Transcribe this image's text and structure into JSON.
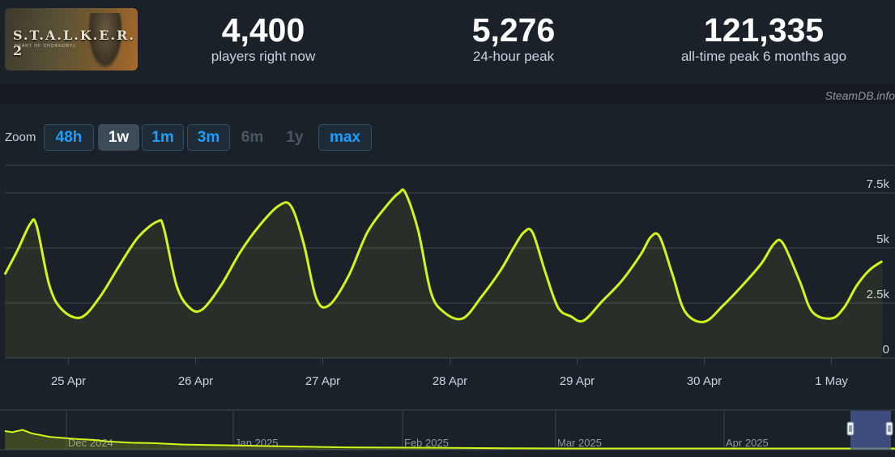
{
  "header": {
    "logo": {
      "text": "S.T.A.L.K.E.R. 2",
      "subtext": "HEART OF CHORNOBYL"
    },
    "stats": [
      {
        "value": "4,400",
        "label": "players right now"
      },
      {
        "value": "5,276",
        "label": "24-hour peak"
      },
      {
        "value": "121,335",
        "label": "all-time peak 6 months ago"
      }
    ]
  },
  "credit": "SteamDB.info",
  "zoom": {
    "label": "Zoom",
    "options": [
      {
        "label": "48h",
        "state": "enabled"
      },
      {
        "label": "1w",
        "state": "active"
      },
      {
        "label": "1m",
        "state": "enabled"
      },
      {
        "label": "3m",
        "state": "enabled"
      },
      {
        "label": "6m",
        "state": "disabled"
      },
      {
        "label": "1y",
        "state": "disabled"
      },
      {
        "label": "max",
        "state": "enabled"
      }
    ]
  },
  "colors": {
    "line": "#d4f51b",
    "grid": "#3a4654",
    "background": "#1b2129",
    "navigator_fill": "#4a5a9a"
  },
  "chart_data": [
    {
      "type": "line",
      "title": "",
      "xlabel": "",
      "ylabel": "",
      "ylim": [
        0,
        8750
      ],
      "yticks": [
        0,
        2500,
        5000,
        7500
      ],
      "ytick_labels": [
        "0",
        "2.5k",
        "5k",
        "7.5k"
      ],
      "xticks": [
        {
          "x": 0.5,
          "label": "25 Apr"
        },
        {
          "x": 1.5,
          "label": "26 Apr"
        },
        {
          "x": 2.5,
          "label": "27 Apr"
        },
        {
          "x": 3.5,
          "label": "28 Apr"
        },
        {
          "x": 4.5,
          "label": "29 Apr"
        },
        {
          "x": 5.5,
          "label": "30 Apr"
        },
        {
          "x": 6.5,
          "label": "1 May"
        }
      ],
      "grid": true,
      "legend": "none",
      "series": [
        {
          "values": [
            [
              0.0,
              3800
            ],
            [
              0.1,
              4900
            ],
            [
              0.2,
              6100
            ],
            [
              0.25,
              6000
            ],
            [
              0.35,
              3300
            ],
            [
              0.45,
              2200
            ],
            [
              0.6,
              1850
            ],
            [
              0.75,
              2800
            ],
            [
              0.9,
              4200
            ],
            [
              1.05,
              5500
            ],
            [
              1.2,
              6200
            ],
            [
              1.25,
              5900
            ],
            [
              1.35,
              3300
            ],
            [
              1.45,
              2300
            ],
            [
              1.55,
              2200
            ],
            [
              1.7,
              3300
            ],
            [
              1.85,
              4800
            ],
            [
              2.0,
              6000
            ],
            [
              2.15,
              6900
            ],
            [
              2.25,
              6900
            ],
            [
              2.35,
              5200
            ],
            [
              2.45,
              2700
            ],
            [
              2.55,
              2400
            ],
            [
              2.7,
              3700
            ],
            [
              2.85,
              5700
            ],
            [
              3.0,
              6900
            ],
            [
              3.1,
              7500
            ],
            [
              3.15,
              7500
            ],
            [
              3.25,
              5800
            ],
            [
              3.35,
              3000
            ],
            [
              3.45,
              2100
            ],
            [
              3.6,
              1800
            ],
            [
              3.75,
              2800
            ],
            [
              3.9,
              4000
            ],
            [
              4.0,
              5000
            ],
            [
              4.08,
              5700
            ],
            [
              4.15,
              5700
            ],
            [
              4.25,
              3900
            ],
            [
              4.35,
              2300
            ],
            [
              4.45,
              1900
            ],
            [
              4.55,
              1700
            ],
            [
              4.7,
              2600
            ],
            [
              4.85,
              3500
            ],
            [
              5.0,
              4700
            ],
            [
              5.08,
              5500
            ],
            [
              5.15,
              5500
            ],
            [
              5.25,
              3800
            ],
            [
              5.35,
              2100
            ],
            [
              5.5,
              1650
            ],
            [
              5.65,
              2400
            ],
            [
              5.8,
              3300
            ],
            [
              5.95,
              4300
            ],
            [
              6.05,
              5200
            ],
            [
              6.12,
              5200
            ],
            [
              6.25,
              3500
            ],
            [
              6.35,
              2100
            ],
            [
              6.5,
              1800
            ],
            [
              6.6,
              2300
            ],
            [
              6.7,
              3300
            ],
            [
              6.8,
              4000
            ],
            [
              6.9,
              4400
            ]
          ]
        }
      ]
    },
    {
      "type": "area",
      "title": "",
      "xticks": [
        {
          "x": 1,
          "label": "Dec 2024"
        },
        {
          "x": 2,
          "label": "Jan 2025"
        },
        {
          "x": 3,
          "label": "Feb 2025"
        },
        {
          "x": 4,
          "label": "Mar 2025"
        },
        {
          "x": 5,
          "label": "Apr 2025"
        }
      ],
      "ylim": [
        0,
        1
      ],
      "selected_range": [
        5.75,
        6.0
      ],
      "series": [
        {
          "values": [
            [
              0.0,
              0.8
            ],
            [
              0.05,
              0.75
            ],
            [
              0.12,
              0.85
            ],
            [
              0.18,
              0.7
            ],
            [
              0.3,
              0.55
            ],
            [
              0.4,
              0.5
            ],
            [
              0.5,
              0.45
            ],
            [
              0.6,
              0.42
            ],
            [
              0.7,
              0.35
            ],
            [
              0.85,
              0.3
            ],
            [
              1.0,
              0.28
            ],
            [
              1.2,
              0.22
            ],
            [
              1.4,
              0.2
            ],
            [
              1.6,
              0.18
            ],
            [
              1.8,
              0.15
            ],
            [
              2.0,
              0.13
            ],
            [
              2.3,
              0.1
            ],
            [
              2.6,
              0.09
            ],
            [
              3.0,
              0.08
            ],
            [
              3.4,
              0.06
            ],
            [
              3.8,
              0.05
            ],
            [
              4.2,
              0.05
            ],
            [
              4.6,
              0.05
            ],
            [
              5.0,
              0.05
            ],
            [
              5.4,
              0.05
            ],
            [
              5.75,
              0.05
            ],
            [
              6.0,
              0.05
            ]
          ]
        }
      ]
    }
  ]
}
